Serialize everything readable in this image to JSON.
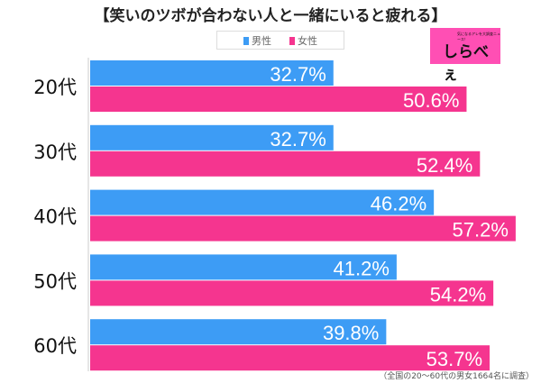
{
  "title": "【笑いのツボが合わない人と一緒にいると疲れる】",
  "logo": {
    "text": "しらべぇ",
    "tagline": "気になるアレを大調査ニュース！"
  },
  "footnote": "（全国の20～60代の男女1664名に調査）",
  "colors": {
    "male": "#3d9cf5",
    "female": "#f5358f"
  },
  "chart_data": {
    "type": "bar",
    "orientation": "horizontal",
    "title": "【笑いのツボが合わない人と一緒にいると疲れる】",
    "categories": [
      "20代",
      "30代",
      "40代",
      "50代",
      "60代"
    ],
    "series": [
      {
        "name": "男性",
        "values": [
          32.7,
          32.7,
          46.2,
          41.2,
          39.8
        ]
      },
      {
        "name": "女性",
        "values": [
          50.6,
          52.4,
          57.2,
          54.2,
          53.7
        ]
      }
    ],
    "value_suffix": "%",
    "xlim": [
      0,
      60
    ],
    "grid": false,
    "legend": "top"
  }
}
